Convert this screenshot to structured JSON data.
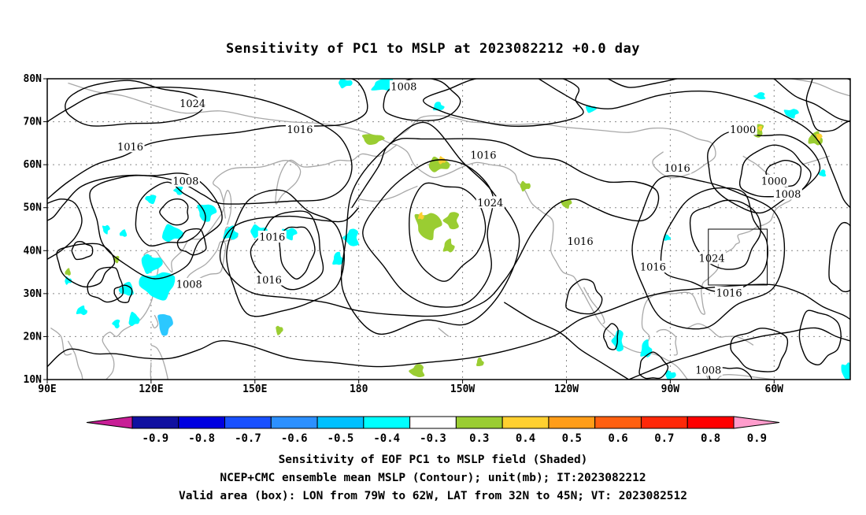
{
  "title": "Sensitivity of PC1 to MSLP at 2023082212 +0.0 day",
  "map": {
    "lat_ticks": [
      "80N",
      "70N",
      "60N",
      "50N",
      "40N",
      "30N",
      "20N",
      "10N"
    ],
    "lon_ticks": [
      "90E",
      "120E",
      "150E",
      "180",
      "150W",
      "120W",
      "90W",
      "60W"
    ],
    "lon_range": [
      90,
      322
    ],
    "lat_range": [
      10,
      80
    ],
    "grid": true,
    "contour_labels": [
      {
        "text": "1008",
        "lon": 193,
        "lat": 78
      },
      {
        "text": "1024",
        "lon": 132,
        "lat": 74
      },
      {
        "text": "1016",
        "lon": 163,
        "lat": 68
      },
      {
        "text": "1016",
        "lon": 114,
        "lat": 64
      },
      {
        "text": "1016",
        "lon": 216,
        "lat": 62
      },
      {
        "text": "1016",
        "lon": 272,
        "lat": 59
      },
      {
        "text": "1000",
        "lon": 291,
        "lat": 68
      },
      {
        "text": "1000",
        "lon": 300,
        "lat": 56
      },
      {
        "text": "1008",
        "lon": 304,
        "lat": 53
      },
      {
        "text": "1008",
        "lon": 130,
        "lat": 56
      },
      {
        "text": "1024",
        "lon": 218,
        "lat": 51
      },
      {
        "text": "1016",
        "lon": 155,
        "lat": 43
      },
      {
        "text": "1016",
        "lon": 244,
        "lat": 42
      },
      {
        "text": "1024",
        "lon": 282,
        "lat": 38
      },
      {
        "text": "1016",
        "lon": 154,
        "lat": 33
      },
      {
        "text": "1016",
        "lon": 265,
        "lat": 36
      },
      {
        "text": "1008",
        "lon": 131,
        "lat": 32
      },
      {
        "text": "1016",
        "lon": 287,
        "lat": 30
      },
      {
        "text": "1008",
        "lon": 281,
        "lat": 12
      }
    ],
    "valid_box": {
      "lon_min": 281,
      "lon_max": 298,
      "lat_min": 32,
      "lat_max": 45
    }
  },
  "colorbar": {
    "labels": [
      "-0.9",
      "-0.8",
      "-0.7",
      "-0.6",
      "-0.5",
      "-0.4",
      "-0.3",
      "0.3",
      "0.4",
      "0.5",
      "0.6",
      "0.7",
      "0.8",
      "0.9"
    ],
    "colors": [
      "#1010a0",
      "#0000e0",
      "#1850ff",
      "#2c90ff",
      "#00c0ff",
      "#00ffff",
      "#ffffff",
      "#9acd32",
      "#ffd030",
      "#ff9d18",
      "#ff6010",
      "#ff2808",
      "#ff0000"
    ],
    "low_end_color": "#c81e96",
    "high_end_color": "#ff9ccc"
  },
  "caption": {
    "line1": "Sensitivity of EOF PC1 to MSLP field (Shaded)",
    "line2": "NCEP+CMC ensemble mean MSLP (Contour); unit(mb); IT:2023082212",
    "line3": "Valid area (box): LON from 79W to 62W, LAT from 32N to 45N; VT: 2023082512"
  },
  "colors": {
    "contour": "#000000",
    "coast": "#a8a8a8",
    "grid": "#888888",
    "negative_shade": "#00ffff",
    "negative_shade_dark": "#2cc8ff",
    "positive_shade": "#9acd32",
    "positive_core": "#ffd030"
  }
}
